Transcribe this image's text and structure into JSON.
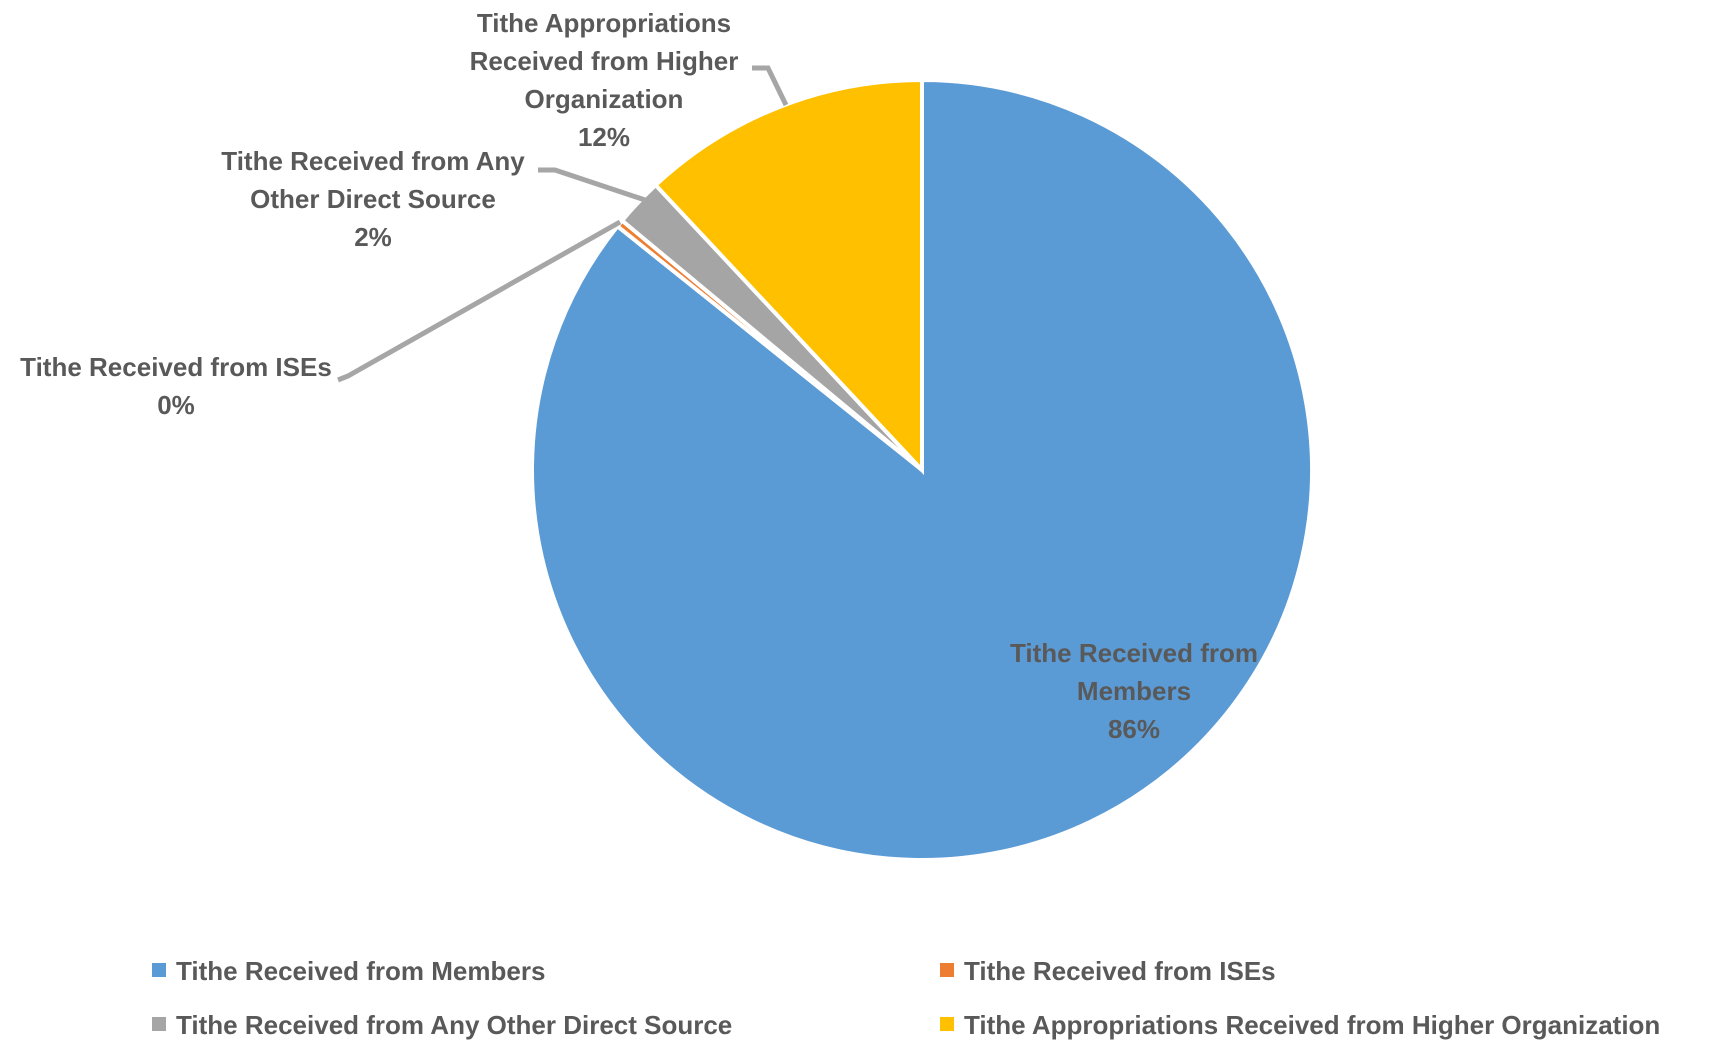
{
  "chart_data": {
    "type": "pie",
    "title": "",
    "slices": [
      {
        "label": "Tithe Received from Members",
        "value": 86,
        "display": "86%",
        "color": "#5B9BD5"
      },
      {
        "label": "Tithe Received from ISEs",
        "value": 0.3,
        "display": "0%",
        "color": "#ED7D31"
      },
      {
        "label": "Tithe Received from Any Other Direct Source",
        "value": 2,
        "display": "2%",
        "color": "#A5A5A5"
      },
      {
        "label": "Tithe Appropriations Received from Higher Organization",
        "value": 12,
        "display": "12%",
        "color": "#FFC000"
      }
    ],
    "legend": {
      "position": "bottom",
      "items": [
        "Tithe Received from Members",
        "Tithe Received from ISEs",
        "Tithe Received from Any Other Direct Source",
        "Tithe Appropriations Received from Higher Organization"
      ]
    },
    "data_labels": [
      {
        "lines": [
          "Tithe Received from",
          "Members",
          "86%"
        ]
      },
      {
        "lines": [
          "Tithe Received from ISEs",
          "0%"
        ]
      },
      {
        "lines": [
          "Tithe Received from Any",
          "Other Direct Source",
          "2%"
        ]
      },
      {
        "lines": [
          "Tithe Appropriations",
          "Received from Higher",
          "Organization",
          "12%"
        ]
      }
    ]
  }
}
